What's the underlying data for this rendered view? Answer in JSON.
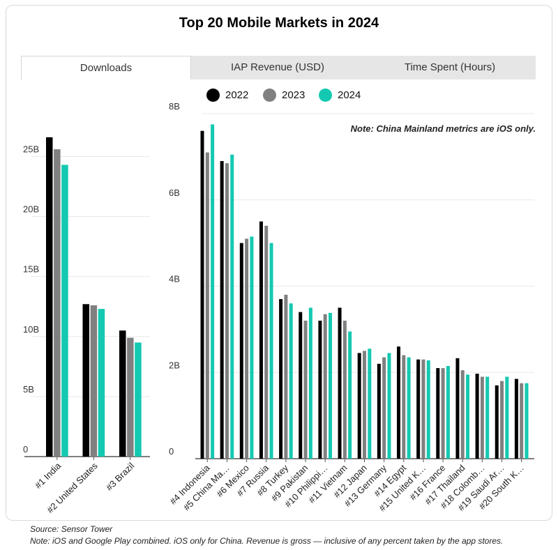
{
  "title": "Top 20 Mobile Markets in 2024",
  "tabs": [
    {
      "label": "Downloads",
      "active": true
    },
    {
      "label": "IAP Revenue (USD)",
      "active": false
    },
    {
      "label": "Time Spent (Hours)",
      "active": false
    }
  ],
  "legend": [
    {
      "label": "2022",
      "color": "#000000"
    },
    {
      "label": "2023",
      "color": "#808080"
    },
    {
      "label": "2024",
      "color": "#14c9b1"
    }
  ],
  "note": "Note: China Mainland metrics are iOS only.",
  "footer": {
    "source": "Source: Sensor Tower",
    "note": "Note: iOS and Google Play combined. iOS only for China. Revenue is gross — inclusive of any percent taken by the app stores."
  },
  "chart_data": [
    {
      "type": "bar",
      "title": "Top 20 Mobile Markets in 2024 — Downloads (#1–#3)",
      "categories": [
        "#1 India",
        "#2 United States",
        "#3 Brazil"
      ],
      "series": [
        {
          "name": "2022",
          "values": [
            26.6,
            12.7,
            10.5
          ]
        },
        {
          "name": "2023",
          "values": [
            25.6,
            12.6,
            9.9
          ]
        },
        {
          "name": "2024",
          "values": [
            24.3,
            12.3,
            9.5
          ]
        }
      ],
      "ylim": [
        0,
        27
      ],
      "yticks": [
        0,
        5,
        10,
        15,
        20,
        25
      ],
      "yticklabels": [
        "0",
        "5B",
        "10B",
        "15B",
        "20B",
        "25B"
      ],
      "xlabel": "",
      "ylabel": ""
    },
    {
      "type": "bar",
      "title": "Top 20 Mobile Markets in 2024 — Downloads (#4–#20)",
      "categories": [
        "#4 Indonesia",
        "#5 China Ma…",
        "#6 Mexico",
        "#7 Russia",
        "#8 Turkey",
        "#9 Pakistan",
        "#10 Philippi…",
        "#11 Vietnam",
        "#12 Japan",
        "#13 Germany",
        "#14 Egypt",
        "#15 United K…",
        "#16 France",
        "#17 Thailand",
        "#18 Colomb…",
        "#19 Saudi Ar…",
        "#20 South K…"
      ],
      "series": [
        {
          "name": "2022",
          "values": [
            7.6,
            6.9,
            5.0,
            5.5,
            3.7,
            3.4,
            3.2,
            3.5,
            2.45,
            2.2,
            2.6,
            2.3,
            2.1,
            2.33,
            1.97,
            1.7,
            1.85
          ]
        },
        {
          "name": "2023",
          "values": [
            7.1,
            6.85,
            5.1,
            5.4,
            3.8,
            3.2,
            3.35,
            3.2,
            2.5,
            2.35,
            2.4,
            2.3,
            2.1,
            2.05,
            1.9,
            1.8,
            1.75
          ]
        },
        {
          "name": "2024",
          "values": [
            7.75,
            7.05,
            5.15,
            5.0,
            3.6,
            3.5,
            3.38,
            2.95,
            2.55,
            2.45,
            2.35,
            2.28,
            2.15,
            1.95,
            1.9,
            1.9,
            1.75
          ]
        }
      ],
      "ylim": [
        0,
        8
      ],
      "yticks": [
        0,
        2,
        4,
        6,
        8
      ],
      "yticklabels": [
        "0",
        "2B",
        "4B",
        "6B",
        "8B"
      ],
      "xlabel": "",
      "ylabel": ""
    }
  ]
}
